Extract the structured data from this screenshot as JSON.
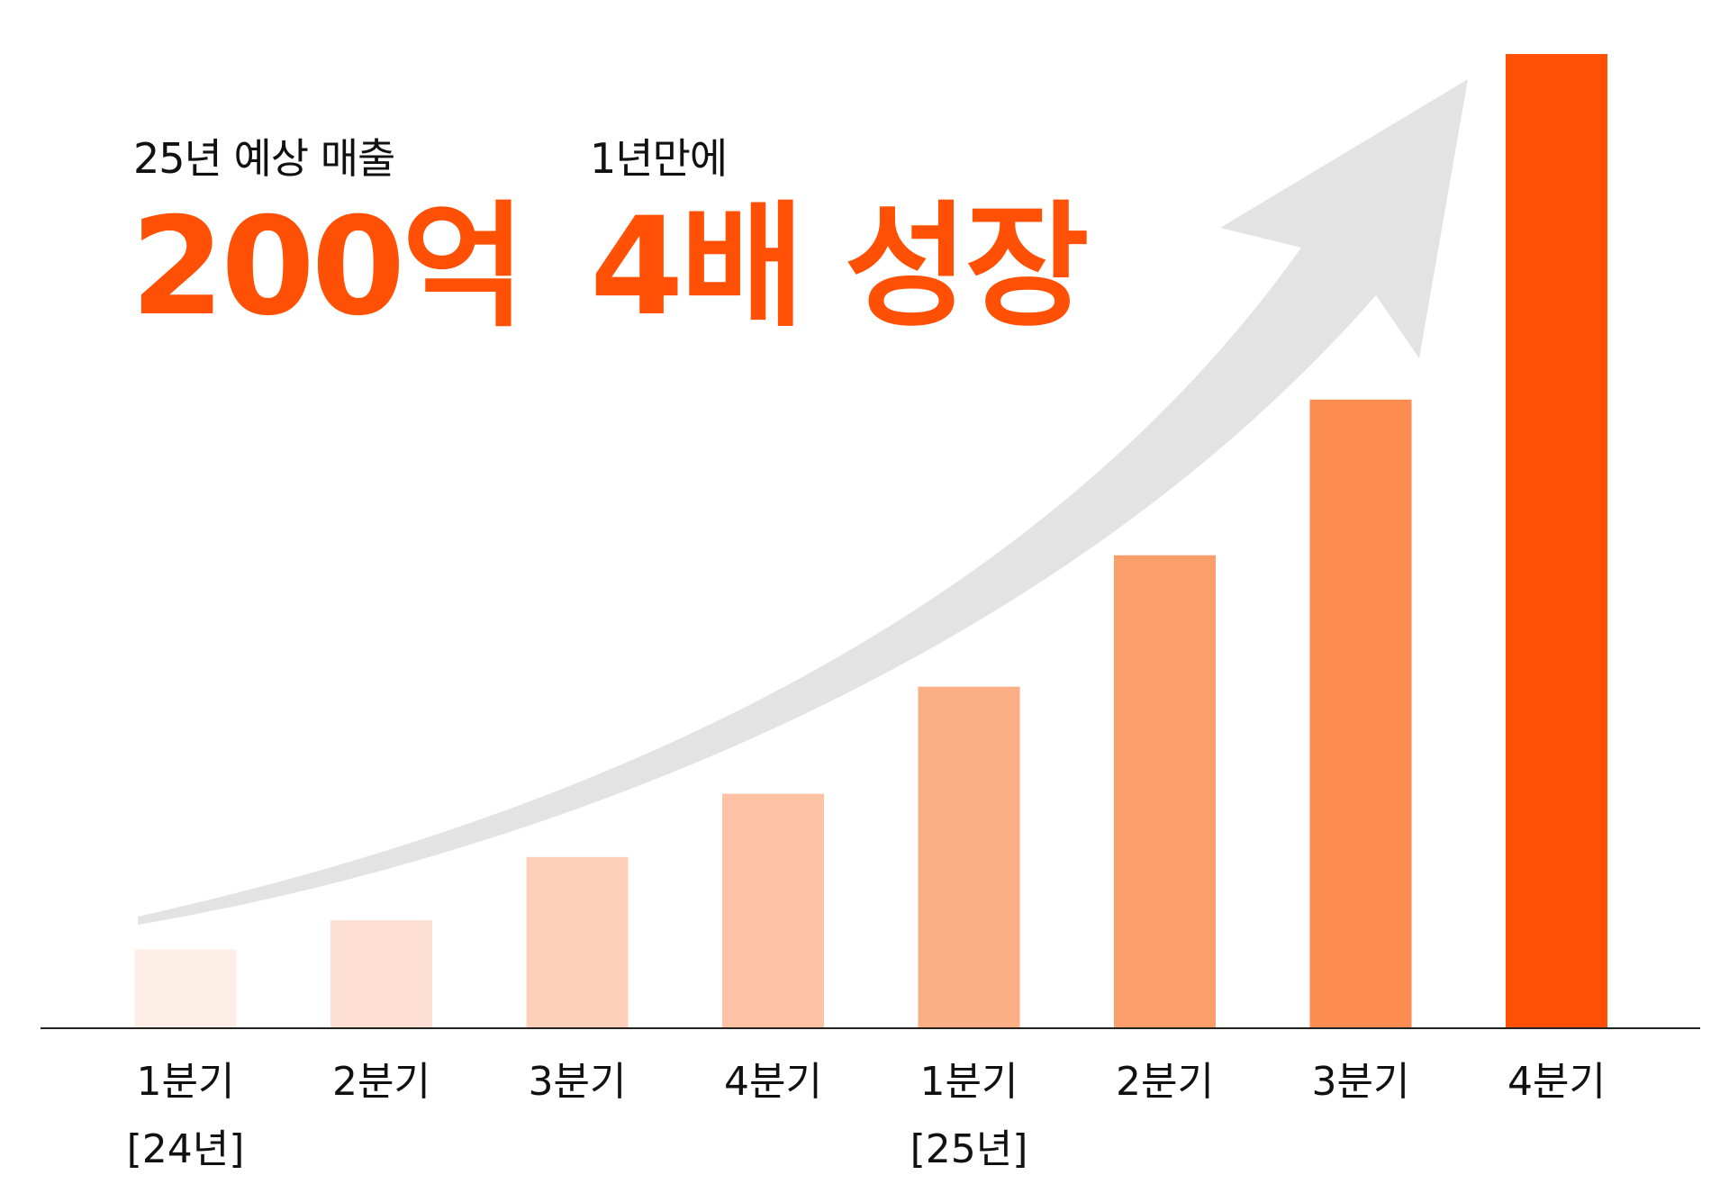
{
  "headline": {
    "left_caption": "25년 예상 매출",
    "left_value": "200억",
    "right_caption": "1년만에",
    "right_value": "4배 성장"
  },
  "chart_data": {
    "type": "bar",
    "title": "",
    "xlabel": "",
    "ylabel": "",
    "categories": [
      "1분기",
      "2분기",
      "3분기",
      "4분기",
      "1분기",
      "2분기",
      "3분기",
      "4분기"
    ],
    "year_labels": [
      {
        "index": 0,
        "text": "[24년]"
      },
      {
        "index": 4,
        "text": "[25년]"
      }
    ],
    "values": [
      8,
      11,
      17.5,
      24,
      35,
      48.5,
      64.5,
      100
    ],
    "ylim": [
      0,
      100
    ],
    "grid": false,
    "legend": "none",
    "bar_colors": [
      "#FEEFE6",
      "#FDE0D3",
      "#FDD0BC",
      "#FDC1A3",
      "#FCAE84",
      "#FC9E69",
      "#FC8C50",
      "#FF5005"
    ],
    "trend_arrow_color": "#E3E3E3",
    "axis_color": "#222222"
  }
}
